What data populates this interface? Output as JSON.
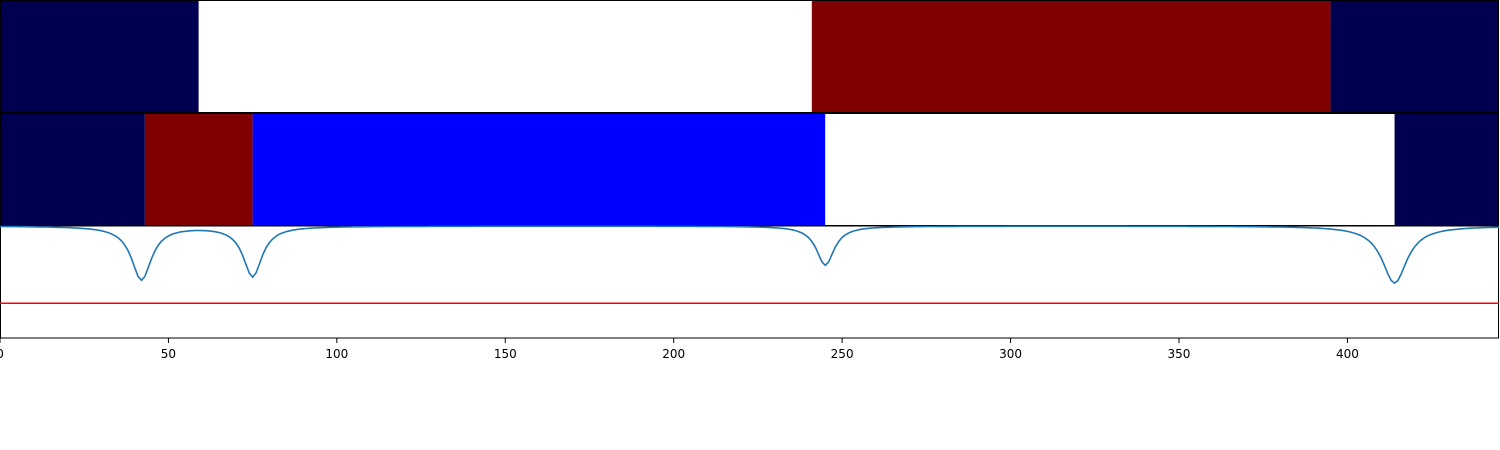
{
  "chart_data": {
    "type": "heatmap",
    "xlim": [
      0,
      445
    ],
    "x_ticks": [
      0,
      50,
      100,
      150,
      200,
      250,
      300,
      350,
      400
    ],
    "x_tick_labels": [
      "0",
      "50",
      "100",
      "150",
      "200",
      "250",
      "300",
      "350",
      "400"
    ],
    "colors": {
      "dark-navy": "#000050",
      "white": "#ffffff",
      "dark-red": "#7f0000",
      "blue": "#0000ff",
      "line": "#1f77b4",
      "threshold": "#ff0000"
    },
    "rows": [
      {
        "segments": [
          {
            "start": 0,
            "end": 59,
            "color": "dark-navy"
          },
          {
            "start": 59,
            "end": 241,
            "color": "white"
          },
          {
            "start": 241,
            "end": 395,
            "color": "dark-red"
          },
          {
            "start": 395,
            "end": 445,
            "color": "dark-navy"
          }
        ]
      },
      {
        "segments": [
          {
            "start": 0,
            "end": 43,
            "color": "dark-navy"
          },
          {
            "start": 43,
            "end": 75,
            "color": "dark-red"
          },
          {
            "start": 75,
            "end": 245,
            "color": "blue"
          },
          {
            "start": 245,
            "end": 414,
            "color": "white"
          },
          {
            "start": 414,
            "end": 445,
            "color": "dark-navy"
          }
        ]
      }
    ],
    "line_panel": {
      "ylim": [
        0,
        1
      ],
      "threshold": 0.31,
      "curve_baseline": 1.0,
      "dips": [
        {
          "x": 42,
          "y": 0.52,
          "width": 3.6
        },
        {
          "x": 75,
          "y": 0.55,
          "width": 3.4
        },
        {
          "x": 245,
          "y": 0.65,
          "width": 3.2
        },
        {
          "x": 414,
          "y": 0.49,
          "width": 4.5
        }
      ]
    },
    "grid": false,
    "legend": "none"
  }
}
